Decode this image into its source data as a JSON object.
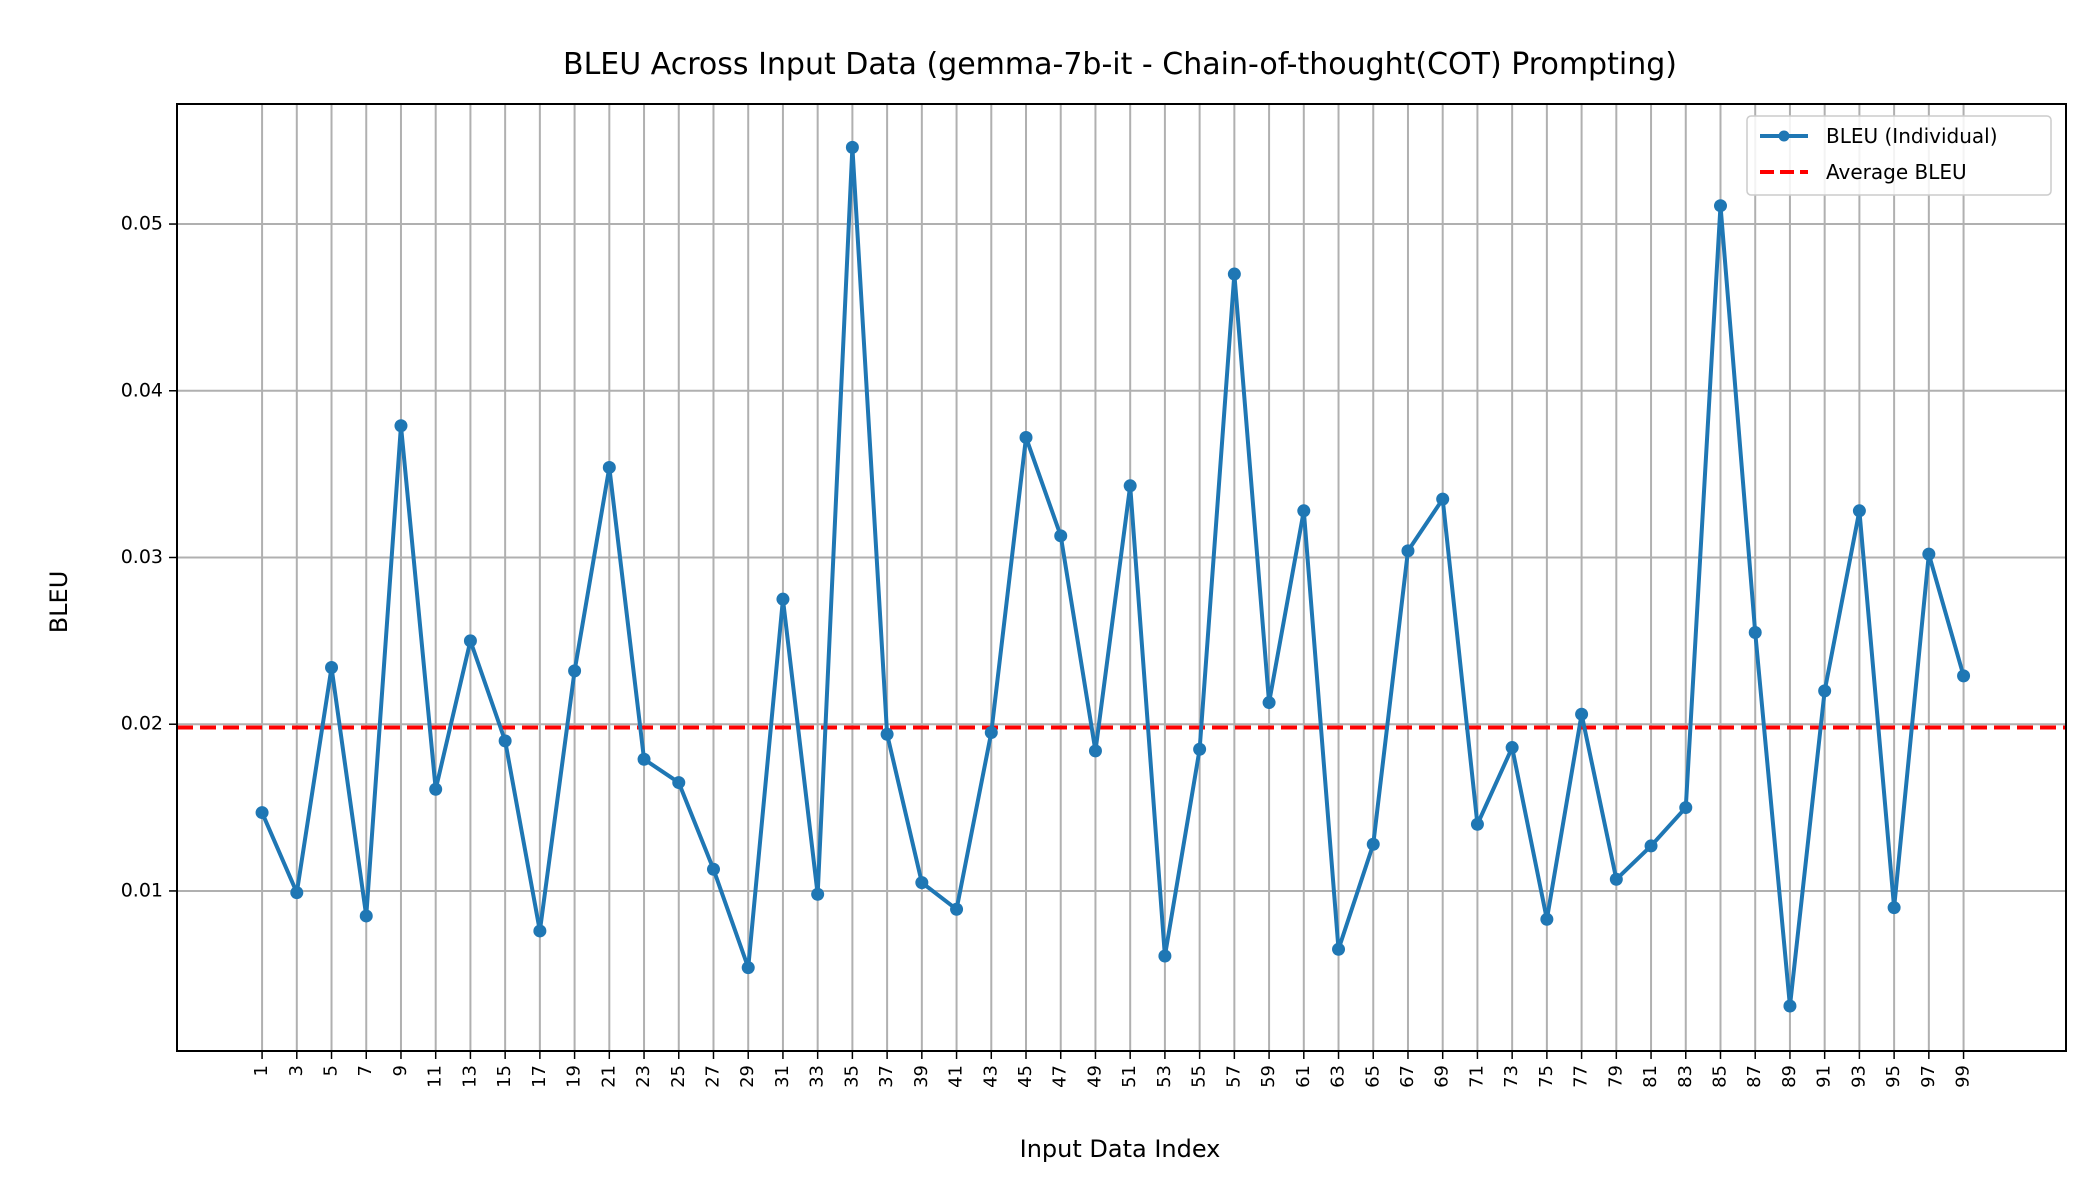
{
  "chart_data": {
    "type": "line",
    "title": "BLEU Across Input Data (gemma-7b-it - Chain-of-thought(COT) Prompting)",
    "xlabel": "Input Data Index",
    "ylabel": "BLEU",
    "x": [
      1,
      3,
      5,
      7,
      9,
      11,
      13,
      15,
      17,
      19,
      21,
      23,
      25,
      27,
      29,
      31,
      33,
      35,
      37,
      39,
      41,
      43,
      45,
      47,
      49,
      51,
      53,
      55,
      57,
      59,
      61,
      63,
      65,
      67,
      69,
      71,
      73,
      75,
      77,
      79,
      81,
      83,
      85,
      87,
      89,
      91,
      93,
      95,
      97,
      99
    ],
    "x_tick_labels": [
      "1",
      "3",
      "5",
      "7",
      "9",
      "11",
      "13",
      "15",
      "17",
      "19",
      "21",
      "23",
      "25",
      "27",
      "29",
      "31",
      "33",
      "35",
      "37",
      "39",
      "41",
      "43",
      "45",
      "47",
      "49",
      "51",
      "53",
      "55",
      "57",
      "59",
      "61",
      "63",
      "65",
      "67",
      "69",
      "71",
      "73",
      "75",
      "77",
      "79",
      "81",
      "83",
      "85",
      "87",
      "89",
      "91",
      "93",
      "95",
      "97",
      "99"
    ],
    "y_ticks": [
      0.01,
      0.02,
      0.03,
      0.04,
      0.05
    ],
    "y_tick_labels": [
      "0.01",
      "0.02",
      "0.03",
      "0.04",
      "0.05"
    ],
    "xlim": [
      -3.9,
      104.9
    ],
    "ylim": [
      0.0004,
      0.0572
    ],
    "grid": true,
    "legend_position": "top-right",
    "series": [
      {
        "name": "BLEU (Individual)",
        "color": "#1f77b4",
        "style": "solid-with-markers",
        "values": [
          0.0147,
          0.0099,
          0.0234,
          0.0085,
          0.0379,
          0.0161,
          0.025,
          0.019,
          0.0076,
          0.0232,
          0.0354,
          0.0179,
          0.0165,
          0.0113,
          0.0054,
          0.0275,
          0.0098,
          0.0546,
          0.0194,
          0.0105,
          0.0089,
          0.0195,
          0.0372,
          0.0313,
          0.0184,
          0.0343,
          0.0061,
          0.0185,
          0.047,
          0.0213,
          0.0328,
          0.0065,
          0.0128,
          0.0304,
          0.0335,
          0.014,
          0.0186,
          0.0083,
          0.0206,
          0.0107,
          0.0127,
          0.015,
          0.0511,
          0.0255,
          0.0031,
          0.022,
          0.0328,
          0.009,
          0.0302,
          0.0229
        ]
      },
      {
        "name": "Average BLEU",
        "color": "#ff0000",
        "style": "dashed",
        "value": 0.0198
      }
    ]
  }
}
